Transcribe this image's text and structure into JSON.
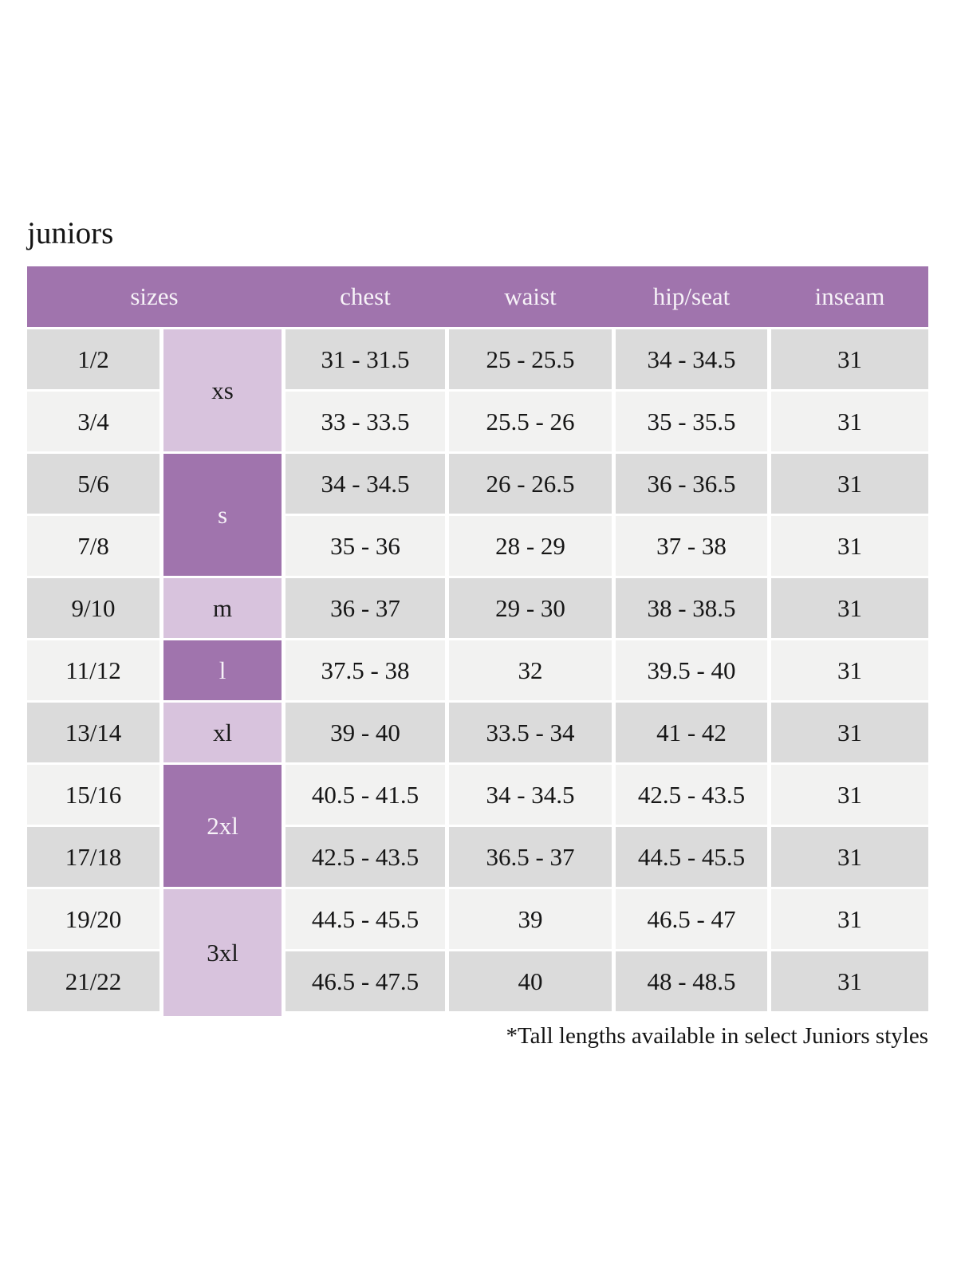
{
  "page": {
    "title": "juniors",
    "footnote": "*Tall lengths available in select Juniors styles"
  },
  "table": {
    "headers": [
      "sizes",
      "chest",
      "waist",
      "hip/seat",
      "inseam"
    ],
    "size_groups": [
      {
        "label": "xs",
        "rows_spanned": 2,
        "variant": "light"
      },
      {
        "label": "s",
        "rows_spanned": 2,
        "variant": "dark"
      },
      {
        "label": "m",
        "rows_spanned": 1,
        "variant": "light"
      },
      {
        "label": "l",
        "rows_spanned": 1,
        "variant": "dark"
      },
      {
        "label": "xl",
        "rows_spanned": 1,
        "variant": "light"
      },
      {
        "label": "2xl",
        "rows_spanned": 2,
        "variant": "dark"
      },
      {
        "label": "3xl",
        "rows_spanned": 2,
        "variant": "light"
      }
    ],
    "rows": [
      {
        "size": "1/2",
        "chest": "31 - 31.5",
        "waist": "25 - 25.5",
        "hip_seat": "34 - 34.5",
        "inseam": "31"
      },
      {
        "size": "3/4",
        "chest": "33 - 33.5",
        "waist": "25.5 - 26",
        "hip_seat": "35 - 35.5",
        "inseam": "31"
      },
      {
        "size": "5/6",
        "chest": "34 - 34.5",
        "waist": "26 - 26.5",
        "hip_seat": "36 - 36.5",
        "inseam": "31"
      },
      {
        "size": "7/8",
        "chest": "35 - 36",
        "waist": "28 - 29",
        "hip_seat": "37 - 38",
        "inseam": "31"
      },
      {
        "size": "9/10",
        "chest": "36 - 37",
        "waist": "29 - 30",
        "hip_seat": "38 - 38.5",
        "inseam": "31"
      },
      {
        "size": "11/12",
        "chest": "37.5 - 38",
        "waist": "32",
        "hip_seat": "39.5 - 40",
        "inseam": "31"
      },
      {
        "size": "13/14",
        "chest": "39 - 40",
        "waist": "33.5 - 34",
        "hip_seat": "41 - 42",
        "inseam": "31"
      },
      {
        "size": "15/16",
        "chest": "40.5 - 41.5",
        "waist": "34 - 34.5",
        "hip_seat": "42.5 - 43.5",
        "inseam": "31"
      },
      {
        "size": "17/18",
        "chest": "42.5 - 43.5",
        "waist": "36.5 - 37",
        "hip_seat": "44.5 - 45.5",
        "inseam": "31"
      },
      {
        "size": "19/20",
        "chest": "44.5 - 45.5",
        "waist": "39",
        "hip_seat": "46.5 - 47",
        "inseam": "31"
      },
      {
        "size": "21/22",
        "chest": "46.5 - 47.5",
        "waist": "40",
        "hip_seat": "48 - 48.5",
        "inseam": "31"
      }
    ],
    "colors": {
      "header_bg": "#a074ad",
      "group_dark_bg": "#a074ad",
      "group_light_bg": "#d8c3dd",
      "row_dark_bg": "#dbdbdb",
      "row_light_bg": "#f2f2f1",
      "header_text": "#f7f3f8",
      "cell_text": "#161616"
    }
  }
}
